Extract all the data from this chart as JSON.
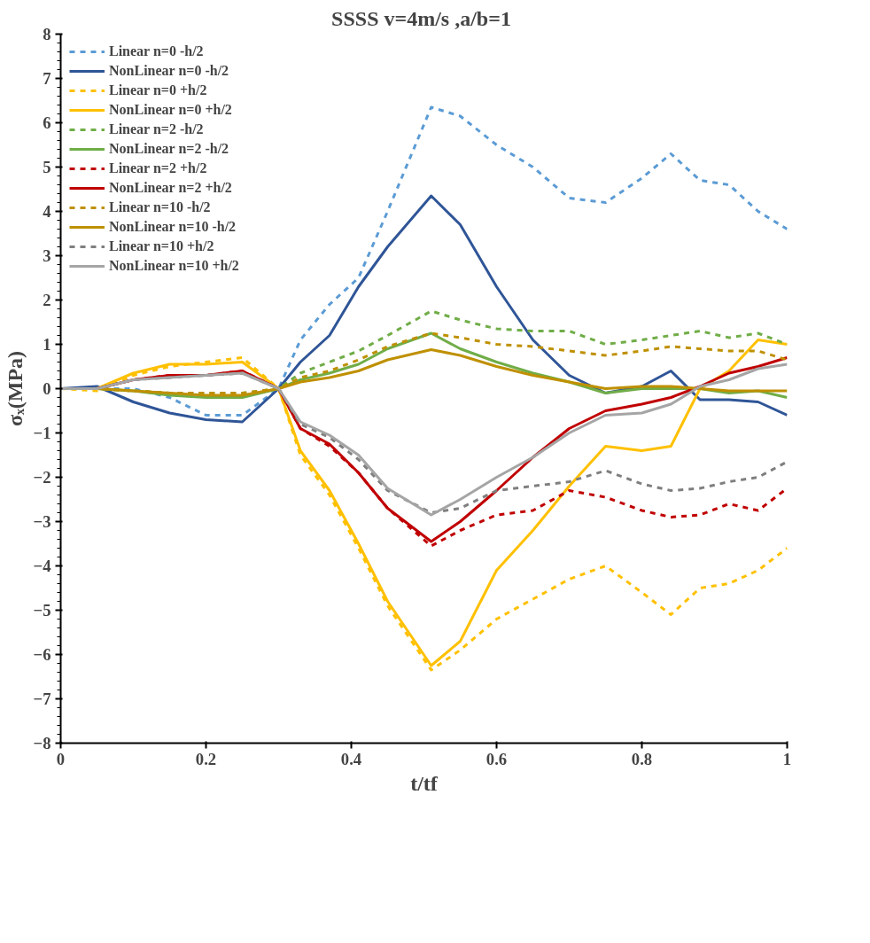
{
  "chart_data": {
    "type": "line",
    "title": "SSSS  v=4m/s ,a/b=1",
    "xlabel": "t/tf",
    "ylabel": "σₓ(MPa)",
    "x": [
      0,
      0.05,
      0.1,
      0.15,
      0.2,
      0.25,
      0.3,
      0.33,
      0.37,
      0.41,
      0.45,
      0.51,
      0.55,
      0.6,
      0.65,
      0.7,
      0.75,
      0.8,
      0.84,
      0.88,
      0.92,
      0.96,
      1
    ],
    "xlim": [
      0,
      1
    ],
    "xticks": [
      {
        "value": 0,
        "label": "0"
      },
      0.2,
      0.4,
      0.6,
      0.8,
      1
    ],
    "ylim": [
      -8,
      8
    ],
    "yticks": [
      -8,
      -7,
      -6,
      -5,
      -4,
      -3,
      -2,
      -1,
      0,
      1,
      2,
      3,
      4,
      5,
      6,
      7,
      8
    ],
    "grid": false,
    "legend": "top left",
    "series": [
      {
        "name": "Linear n=0 -h/2",
        "color": "#5b9bd5",
        "line_style": "dashed",
        "values": [
          0,
          0,
          0,
          -0.2,
          -0.6,
          -0.6,
          0,
          1.1,
          1.9,
          2.5,
          4.0,
          6.35,
          6.15,
          5.5,
          5.0,
          4.3,
          4.2,
          4.75,
          5.3,
          4.7,
          4.6,
          4.0,
          3.6
        ]
      },
      {
        "name": "NonLinear n=0 -h/2",
        "color": "#2f5597",
        "line_style": "solid",
        "values": [
          0,
          0.05,
          -0.3,
          -0.55,
          -0.7,
          -0.75,
          0,
          0.6,
          1.2,
          2.3,
          3.2,
          4.35,
          3.7,
          2.3,
          1.1,
          0.3,
          -0.1,
          0.05,
          0.4,
          -0.25,
          -0.25,
          -0.3,
          -0.6
        ]
      },
      {
        "name": "Linear n=0 +h/2",
        "color": "#ffc000",
        "line_style": "dashed",
        "values": [
          0,
          -0.05,
          0.3,
          0.5,
          0.6,
          0.7,
          0,
          -1.5,
          -2.4,
          -3.6,
          -4.9,
          -6.35,
          -5.9,
          -5.2,
          -4.75,
          -4.3,
          -4.0,
          -4.6,
          -5.1,
          -4.5,
          -4.4,
          -4.1,
          -3.6
        ]
      },
      {
        "name": "NonLinear n=0 +h/2",
        "color": "#ffc000",
        "line_style": "solid",
        "values": [
          0,
          0,
          0.35,
          0.55,
          0.55,
          0.6,
          0,
          -1.4,
          -2.3,
          -3.5,
          -4.8,
          -6.25,
          -5.7,
          -4.1,
          -3.2,
          -2.2,
          -1.3,
          -1.4,
          -1.3,
          0.0,
          0.4,
          1.1,
          1.0
        ]
      },
      {
        "name": "Linear n=2 -h/2",
        "color": "#70ad47",
        "line_style": "dashed",
        "values": [
          0,
          0,
          -0.05,
          -0.1,
          -0.1,
          -0.1,
          0,
          0.35,
          0.6,
          0.85,
          1.2,
          1.75,
          1.55,
          1.35,
          1.3,
          1.3,
          1.0,
          1.1,
          1.2,
          1.3,
          1.15,
          1.25,
          1.0
        ]
      },
      {
        "name": "NonLinear n=2 -h/2",
        "color": "#70ad47",
        "line_style": "solid",
        "values": [
          0,
          0,
          -0.05,
          -0.15,
          -0.2,
          -0.2,
          0,
          0.2,
          0.35,
          0.55,
          0.9,
          1.25,
          0.9,
          0.6,
          0.35,
          0.15,
          -0.1,
          0,
          0,
          0,
          -0.1,
          -0.05,
          -0.2
        ]
      },
      {
        "name": "Linear n=2 +h/2",
        "color": "#c00000",
        "line_style": "dashed",
        "values": [
          0,
          0,
          0.2,
          0.3,
          0.3,
          0.4,
          0,
          -0.9,
          -1.3,
          -1.9,
          -2.7,
          -3.55,
          -3.2,
          -2.85,
          -2.75,
          -2.3,
          -2.45,
          -2.75,
          -2.9,
          -2.85,
          -2.6,
          -2.75,
          -2.25
        ]
      },
      {
        "name": "NonLinear n=2 +h/2",
        "color": "#c00000",
        "line_style": "solid",
        "values": [
          0,
          0,
          0.2,
          0.3,
          0.3,
          0.4,
          0,
          -0.9,
          -1.25,
          -1.9,
          -2.7,
          -3.45,
          -3.0,
          -2.3,
          -1.55,
          -0.9,
          -0.5,
          -0.35,
          -0.2,
          0.05,
          0.35,
          0.5,
          0.7
        ]
      },
      {
        "name": "Linear n=10 -h/2",
        "color": "#bf9000",
        "line_style": "dashed",
        "values": [
          0,
          0,
          -0.05,
          -0.1,
          -0.1,
          -0.1,
          0,
          0.25,
          0.4,
          0.65,
          0.95,
          1.25,
          1.15,
          1.0,
          0.95,
          0.85,
          0.75,
          0.85,
          0.95,
          0.9,
          0.85,
          0.85,
          0.65
        ]
      },
      {
        "name": "NonLinear n=10 -h/2",
        "color": "#bf9000",
        "line_style": "solid",
        "values": [
          0,
          0,
          -0.05,
          -0.1,
          -0.15,
          -0.15,
          0,
          0.15,
          0.25,
          0.4,
          0.65,
          0.88,
          0.75,
          0.5,
          0.3,
          0.15,
          0,
          0.05,
          0.05,
          0,
          -0.05,
          -0.05,
          -0.05
        ]
      },
      {
        "name": "Linear n=10 +h/2",
        "color": "#7f7f7f",
        "line_style": "dashed",
        "values": [
          0,
          0,
          0.2,
          0.25,
          0.3,
          0.35,
          0,
          -0.8,
          -1.1,
          -1.6,
          -2.3,
          -2.8,
          -2.7,
          -2.3,
          -2.2,
          -2.1,
          -1.85,
          -2.15,
          -2.3,
          -2.25,
          -2.1,
          -2.0,
          -1.65
        ]
      },
      {
        "name": "NonLinear n=10 +h/2",
        "color": "#a5a5a5",
        "line_style": "solid",
        "values": [
          0,
          0,
          0.2,
          0.25,
          0.3,
          0.35,
          0,
          -0.75,
          -1.05,
          -1.5,
          -2.25,
          -2.85,
          -2.5,
          -2.0,
          -1.55,
          -1.0,
          -0.6,
          -0.55,
          -0.35,
          0.05,
          0.2,
          0.45,
          0.55
        ]
      }
    ]
  }
}
